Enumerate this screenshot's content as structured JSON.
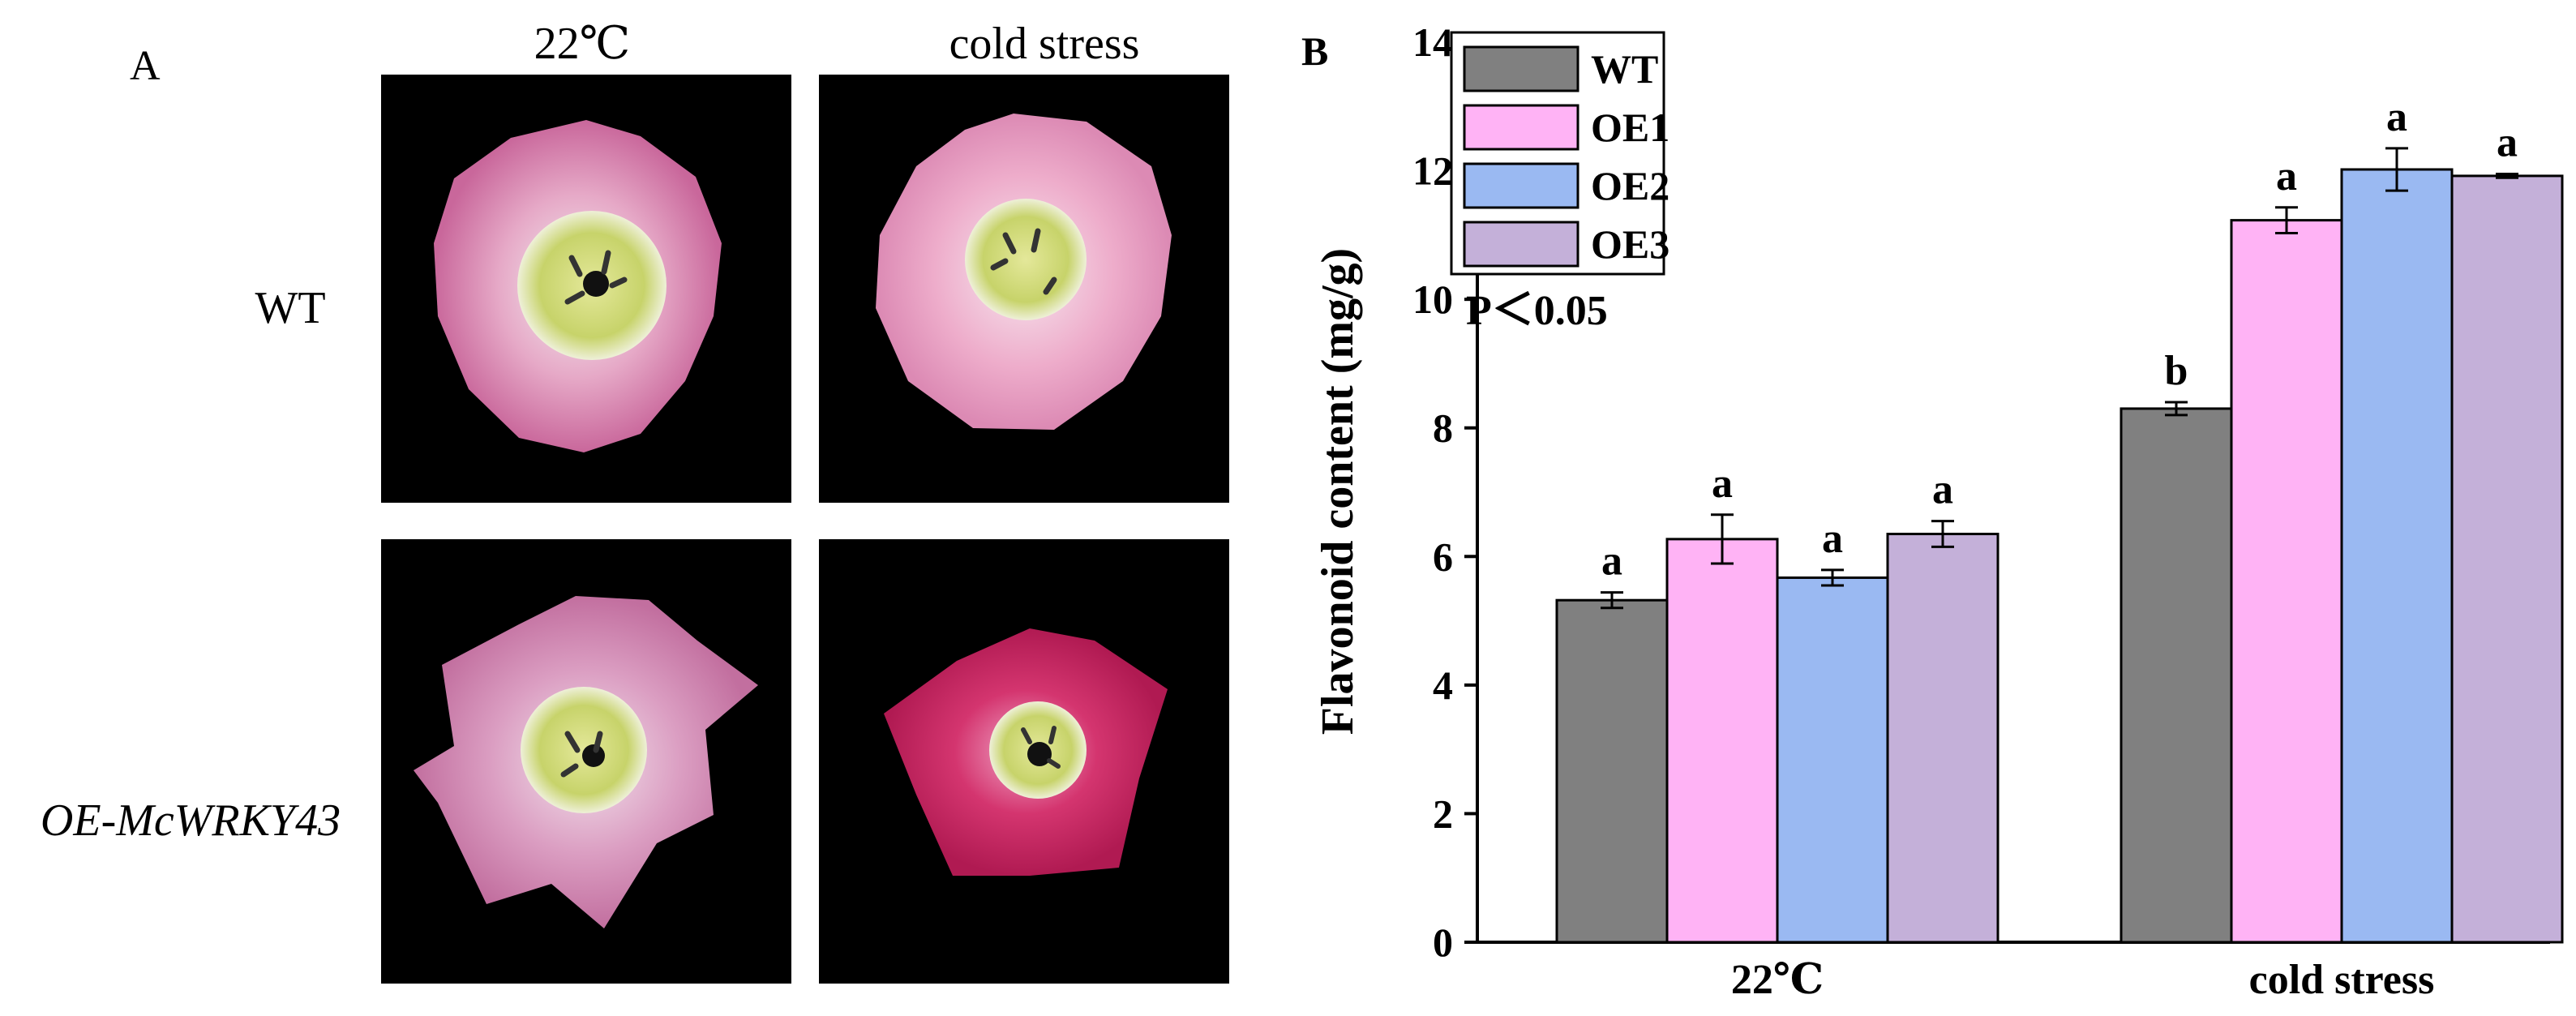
{
  "panel_a": {
    "label": "A",
    "col_headers": [
      "22℃",
      "cold stress"
    ],
    "row_labels": [
      "WT",
      "OE-McWRKY43"
    ]
  },
  "colors": {
    "WT": "#808080",
    "OE1": "#ffb3f5",
    "OE2": "#9ab9f2",
    "OE3": "#c4b0d9",
    "photo_bg": "#000000"
  },
  "chart_data": {
    "type": "bar",
    "panel_label": "B",
    "categories": [
      "22℃",
      "cold stress"
    ],
    "series": [
      {
        "name": "WT",
        "values": [
          5.32,
          8.3
        ],
        "errors": [
          0.12,
          0.1
        ],
        "letters": [
          "a",
          "b"
        ]
      },
      {
        "name": "OE1",
        "values": [
          6.27,
          11.23
        ],
        "errors": [
          0.38,
          0.2
        ],
        "letters": [
          "a",
          "a"
        ]
      },
      {
        "name": "OE2",
        "values": [
          5.67,
          12.02
        ],
        "errors": [
          0.12,
          0.33
        ],
        "letters": [
          "a",
          "a"
        ]
      },
      {
        "name": "OE3",
        "values": [
          6.35,
          11.92
        ],
        "errors": [
          0.2,
          0.03
        ],
        "letters": [
          "a",
          "a"
        ]
      }
    ],
    "ylabel": "Flavonoid content (mg/g)",
    "xlabel": "",
    "ylim": [
      0,
      14
    ],
    "yticks": [
      0,
      2,
      4,
      6,
      8,
      10,
      12,
      14
    ],
    "annotation": "P＜0.05",
    "legend_position": "top-left"
  }
}
